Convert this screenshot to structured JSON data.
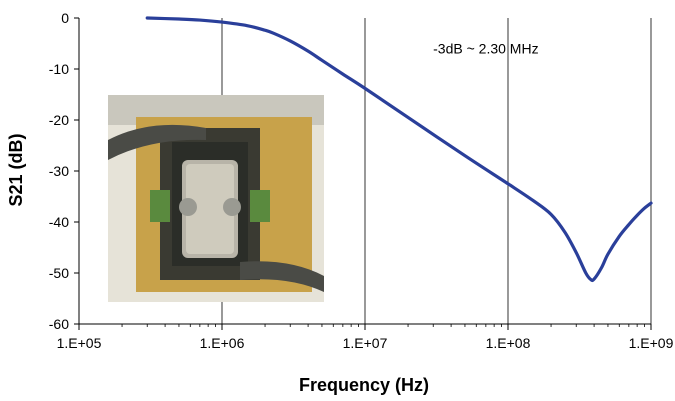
{
  "chart_data": {
    "type": "line",
    "xlabel": "Frequency (Hz)",
    "ylabel": "S21 (dB)",
    "x_scale": "log",
    "xlim": [
      100000,
      1000000000
    ],
    "ylim": [
      -60,
      0
    ],
    "x_ticks": [
      100000,
      1000000,
      10000000,
      100000000,
      1000000000
    ],
    "x_tick_labels": [
      "1.E+05",
      "1.E+06",
      "1.E+07",
      "1.E+08",
      "1.E+09"
    ],
    "y_ticks": [
      0,
      -10,
      -20,
      -30,
      -40,
      -50,
      -60
    ],
    "y_tick_labels": [
      "0",
      "-10",
      "-20",
      "-30",
      "-40",
      "-50",
      "-60"
    ],
    "grid": {
      "x_major": true,
      "y_major": false
    },
    "series": [
      {
        "color": "#2a3f9a",
        "x": [
          300000,
          500000,
          700000,
          1000000,
          1500000,
          2000000,
          2300000,
          3000000,
          4000000,
          5000000,
          7000000,
          10000000,
          20000000,
          50000000,
          100000000,
          150000000,
          200000000,
          250000000,
          300000000,
          350000000,
          380000000,
          400000000,
          450000000,
          500000000,
          600000000,
          700000000,
          800000000,
          900000000,
          1000000000
        ],
        "y": [
          0,
          -0.2,
          -0.4,
          -0.8,
          -1.5,
          -2.4,
          -3.0,
          -4.5,
          -6.5,
          -8.3,
          -11.0,
          -13.8,
          -19.5,
          -27.0,
          -32.5,
          -35.8,
          -38.5,
          -42.0,
          -46.0,
          -50.0,
          -51.3,
          -51.2,
          -49.0,
          -46.3,
          -42.8,
          -40.5,
          -38.7,
          -37.3,
          -36.3
        ]
      }
    ],
    "annotations": [
      {
        "text": "-3dB ~ 2.30 MHz",
        "x": 70000000,
        "y": -6
      }
    ],
    "inset_photo": {
      "description": "photo of surface-mount component in test fixture"
    }
  }
}
